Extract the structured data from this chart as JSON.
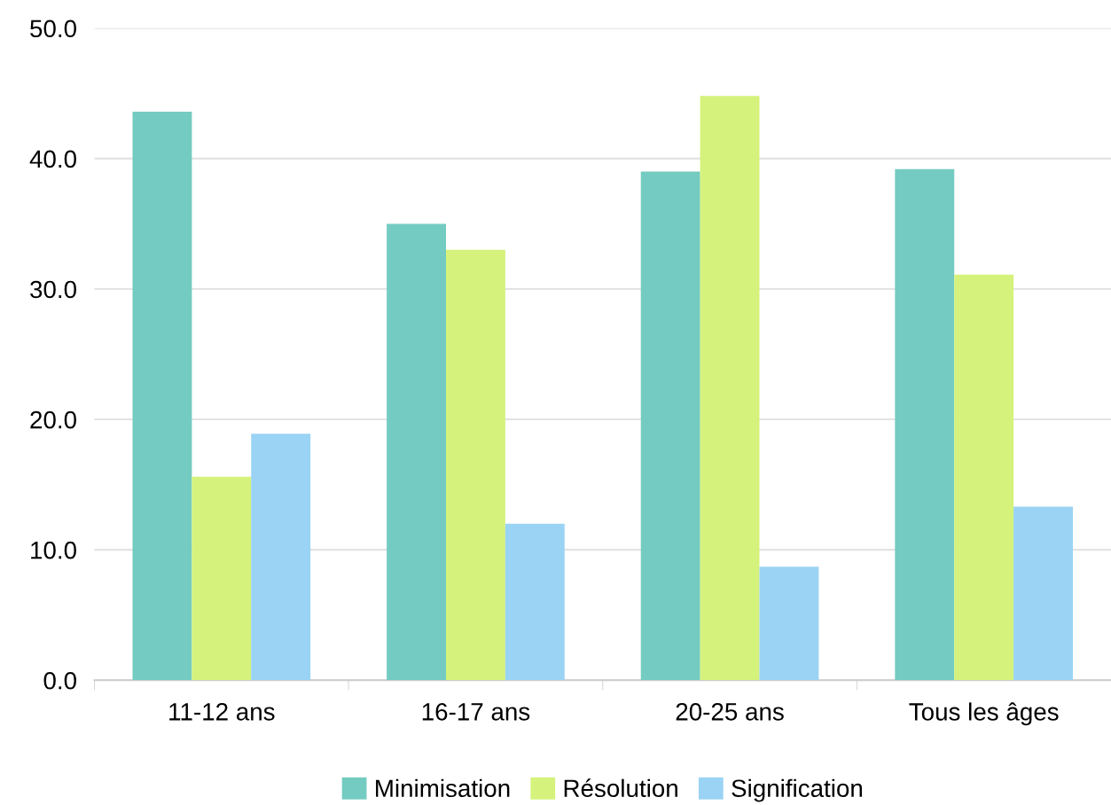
{
  "chart_data": {
    "type": "bar",
    "categories": [
      "11-12 ans",
      "16-17 ans",
      "20-25 ans",
      "Tous les âges"
    ],
    "series": [
      {
        "name": "Minimisation",
        "color": "#74cbc1",
        "values": [
          43.6,
          35.0,
          39.0,
          39.2
        ]
      },
      {
        "name": "Résolution",
        "color": "#d5f27c",
        "values": [
          15.6,
          33.0,
          44.8,
          31.1
        ]
      },
      {
        "name": "Signification",
        "color": "#9ad3f4",
        "values": [
          18.9,
          12.0,
          8.7,
          13.3
        ]
      }
    ],
    "ylim": [
      0,
      50
    ],
    "yticks": [
      {
        "value": 0,
        "label": "0.0"
      },
      {
        "value": 10,
        "label": "10.0"
      },
      {
        "value": 20,
        "label": "20.0"
      },
      {
        "value": 30,
        "label": "30.0"
      },
      {
        "value": 40,
        "label": "40.0"
      },
      {
        "value": 50,
        "label": "50.0"
      }
    ],
    "grid": "y",
    "legend": "bottom"
  }
}
